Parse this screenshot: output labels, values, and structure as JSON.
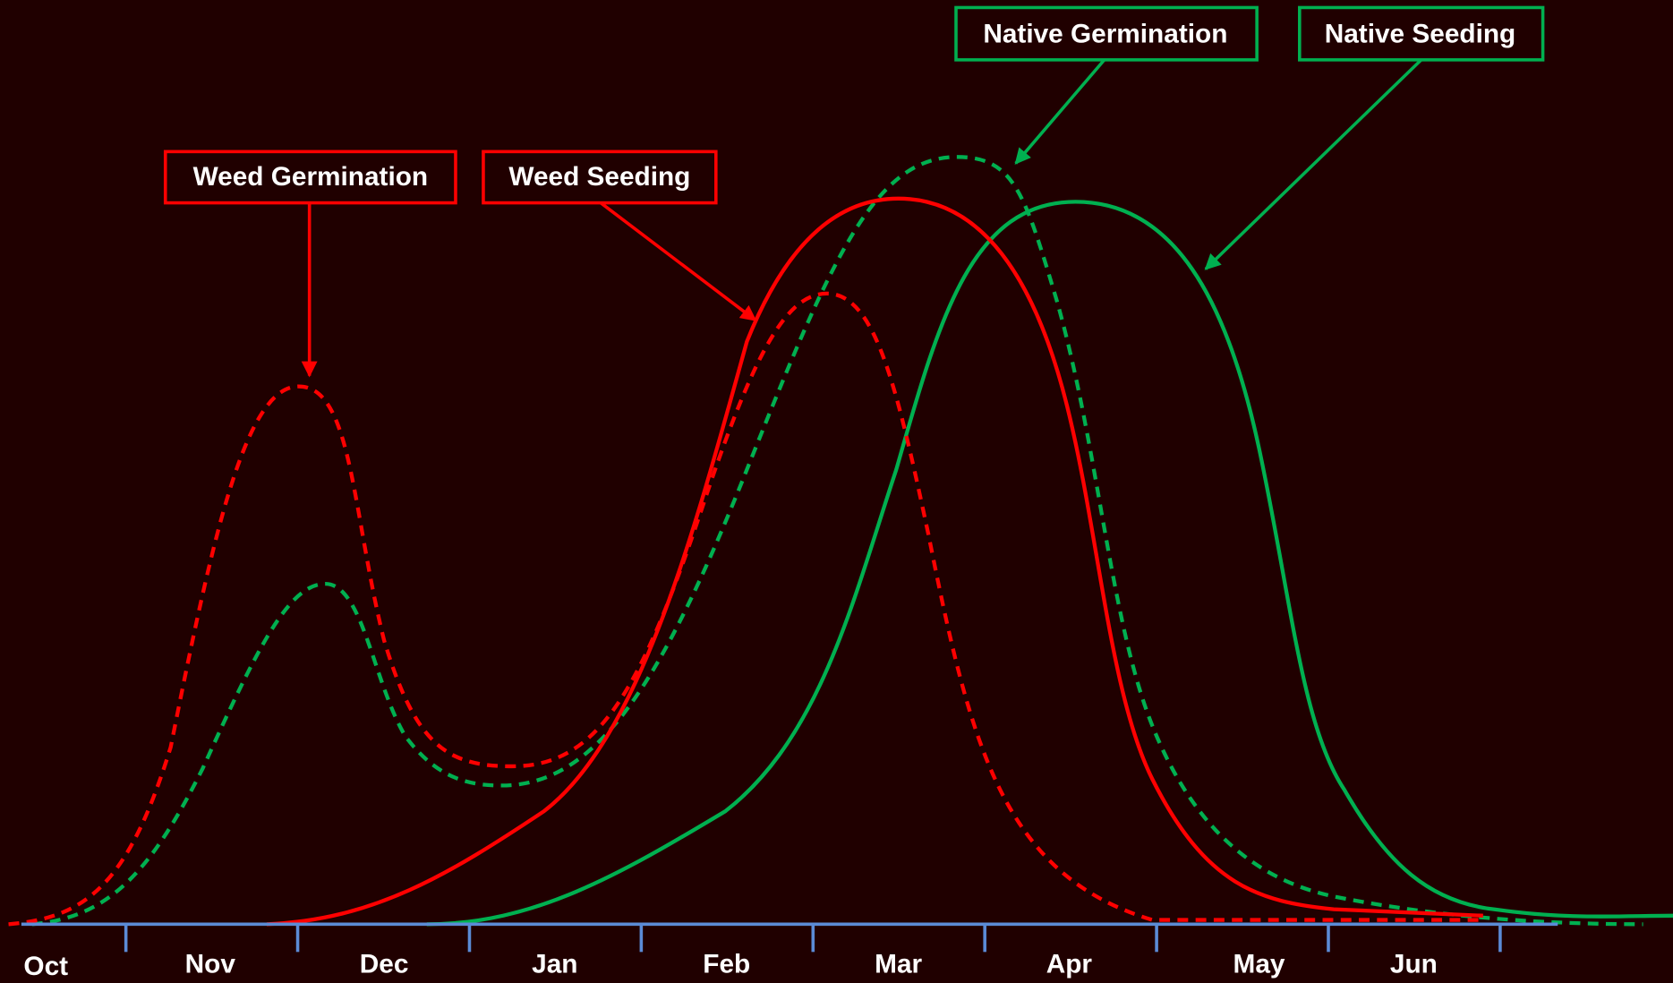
{
  "axis": {
    "months": [
      "Oct",
      "Nov",
      "Dec",
      "Jan",
      "Feb",
      "Mar",
      "Apr",
      "May",
      "Jun"
    ]
  },
  "callouts": [
    {
      "label": "Weed Germination"
    },
    {
      "label": "Weed Seeding"
    },
    {
      "label": "Native Germination"
    },
    {
      "label": "Native Seeding"
    }
  ]
}
